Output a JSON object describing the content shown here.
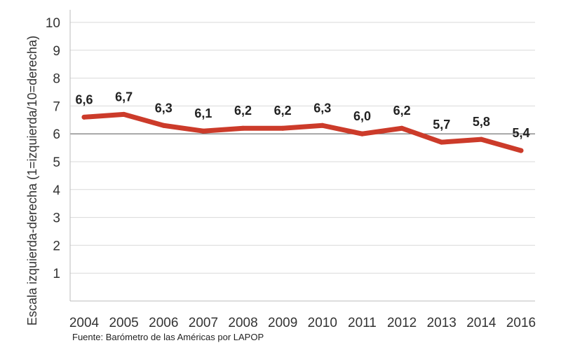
{
  "chart_data": {
    "type": "line",
    "title": "",
    "xlabel": "",
    "ylabel": "Escala izquierda-derecha (1=izquierda/10=derecha)",
    "ylim": [
      0,
      10
    ],
    "yticks": [
      1,
      2,
      3,
      4,
      5,
      6,
      7,
      8,
      9,
      10
    ],
    "categories": [
      "2004",
      "2005",
      "2006",
      "2007",
      "2008",
      "2009",
      "2010",
      "2011",
      "2012",
      "2013",
      "2014",
      "2016"
    ],
    "series": [
      {
        "name": "Escala izquierda-derecha",
        "values": [
          6.6,
          6.7,
          6.3,
          6.1,
          6.2,
          6.2,
          6.3,
          6.0,
          6.2,
          5.7,
          5.8,
          5.4
        ],
        "labels": [
          "6,6",
          "6,7",
          "6,3",
          "6,1",
          "6,2",
          "6,2",
          "6,3",
          "6,0",
          "6,2",
          "5,7",
          "5,8",
          "5,4"
        ]
      }
    ],
    "grid": true,
    "colors": {
      "line": "#cc3b2a",
      "grid": "#d9d9d9",
      "highlight_grid": "#666666"
    }
  },
  "source": "Fuente: Barómetro de las Américas por LAPOP"
}
